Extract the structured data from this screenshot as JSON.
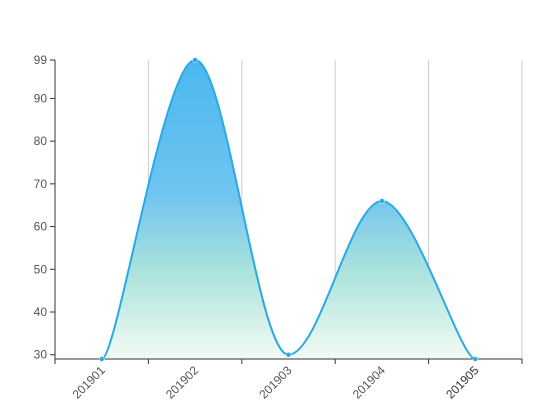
{
  "chart_data": {
    "type": "area",
    "categories": [
      "201901",
      "201902",
      "201903",
      "201904",
      "201905"
    ],
    "values": [
      29,
      99,
      30,
      66,
      29
    ],
    "y_ticks": [
      30,
      40,
      50,
      60,
      70,
      80,
      90,
      99
    ],
    "ylim": [
      29,
      99
    ],
    "grid": "vertical",
    "curve": "smooth",
    "line_color": "#29a9e9",
    "fill_gradient": [
      "#4bb8ee",
      "#70c4f0",
      "#a9e2dc",
      "#f3fbf4"
    ]
  }
}
